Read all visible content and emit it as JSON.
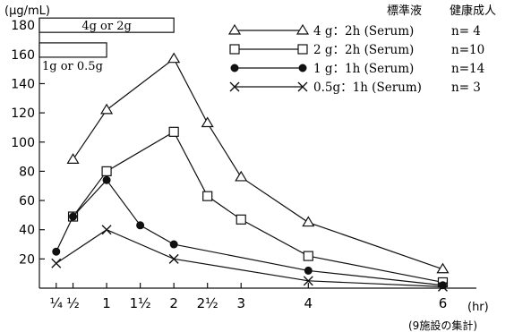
{
  "chart_data": {
    "type": "line",
    "ylabel": "(μg/mL)",
    "xlabel": "(hr)",
    "note": "(9施設の集計)",
    "ylim": [
      0,
      185
    ],
    "xlim": [
      0,
      6.5
    ],
    "yticks": [
      20,
      40,
      60,
      80,
      100,
      120,
      140,
      160,
      180
    ],
    "xticks": [
      {
        "value": 0.25,
        "label": "¼"
      },
      {
        "value": 0.5,
        "label": "½"
      },
      {
        "value": 1,
        "label": "1"
      },
      {
        "value": 1.5,
        "label": "1½"
      },
      {
        "value": 2,
        "label": "2"
      },
      {
        "value": 2.5,
        "label": "2½"
      },
      {
        "value": 3,
        "label": "3"
      },
      {
        "value": 4,
        "label": "4"
      },
      {
        "value": 6,
        "label": "6"
      }
    ],
    "legend_headers": [
      "標準液",
      "健康成人"
    ],
    "infusion_bars": [
      {
        "label": "4g or 2g",
        "start": 0,
        "end": 2,
        "y": 180
      },
      {
        "label": "1g or 0.5g",
        "start": 0,
        "end": 1,
        "y": 163
      }
    ],
    "series": [
      {
        "name": "4 g：2h (Serum)",
        "n": "n= 4",
        "marker": "triangle",
        "x": [
          0.5,
          1,
          2,
          2.5,
          3,
          4,
          6
        ],
        "y": [
          88,
          122,
          157,
          113,
          76,
          45,
          13
        ]
      },
      {
        "name": "2 g：2h (Serum)",
        "n": "n=10",
        "marker": "square",
        "x": [
          0.5,
          1,
          2,
          2.5,
          3,
          4,
          6
        ],
        "y": [
          49,
          80,
          107,
          63,
          47,
          22,
          4
        ]
      },
      {
        "name": "1 g：1h (Serum)",
        "n": "n=14",
        "marker": "circle",
        "x": [
          0.25,
          0.5,
          1,
          1.5,
          2,
          4,
          6
        ],
        "y": [
          25,
          49,
          74,
          43,
          30,
          12,
          2
        ]
      },
      {
        "name": "0.5g：1h (Serum)",
        "n": "n= 3",
        "marker": "cross",
        "x": [
          0.25,
          1,
          2,
          4,
          6
        ],
        "y": [
          17,
          40,
          20,
          5,
          1
        ]
      }
    ]
  }
}
